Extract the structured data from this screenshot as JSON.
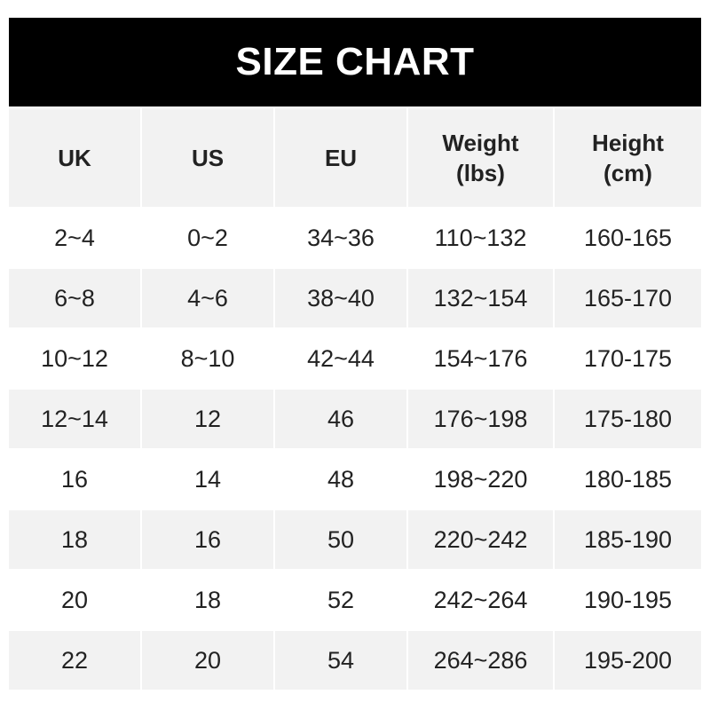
{
  "title": "SIZE CHART",
  "headers": [
    "UK",
    "US",
    "EU",
    "Weight\n(lbs)",
    "Height\n(cm)"
  ],
  "rows": [
    [
      "2~4",
      "0~2",
      "34~36",
      "110~132",
      "160-165"
    ],
    [
      "6~8",
      "4~6",
      "38~40",
      "132~154",
      "165-170"
    ],
    [
      "10~12",
      "8~10",
      "42~44",
      "154~176",
      "170-175"
    ],
    [
      "12~14",
      "12",
      "46",
      "176~198",
      "175-180"
    ],
    [
      "16",
      "14",
      "48",
      "198~220",
      "180-185"
    ],
    [
      "18",
      "16",
      "50",
      "220~242",
      "185-190"
    ],
    [
      "20",
      "18",
      "52",
      "242~264",
      "190-195"
    ],
    [
      "22",
      "20",
      "54",
      "264~286",
      "195-200"
    ]
  ]
}
